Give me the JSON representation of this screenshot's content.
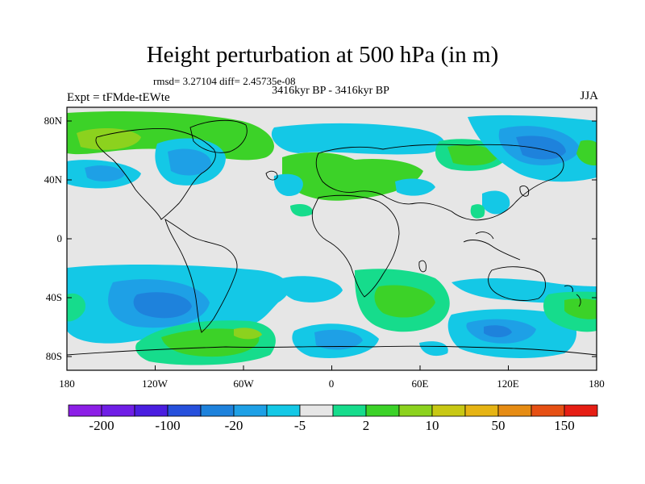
{
  "title": "Height perturbation at 500 hPa (in m)",
  "stats": "rmsd= 3.27104  diff= 2.45735e-08",
  "period": "3416kyr BP - 3416kyr BP",
  "experiment": "Expt = tFMde-tEWte",
  "season": "JJA",
  "lat_ticks": [
    "80N",
    "40N",
    "0",
    "40S",
    "80S"
  ],
  "lon_ticks": [
    "180",
    "120W",
    "60W",
    "0",
    "60E",
    "120E",
    "180"
  ],
  "colorbar": {
    "labels": [
      "-200",
      "-100",
      "-20",
      "-5",
      "2",
      "10",
      "50",
      "150"
    ],
    "colors": [
      "#8c1fe6",
      "#6f1ee6",
      "#4a1ee0",
      "#2650dc",
      "#1e82dc",
      "#1ea0e6",
      "#14c8e6",
      "#e6e6e6",
      "#16dc8c",
      "#3cd228",
      "#8cd21e",
      "#c8c814",
      "#e6b414",
      "#e68c14",
      "#e65014",
      "#e61e14"
    ]
  },
  "palette": {
    "neutral": "#e6e6e6",
    "light_blue": "#14c8e6",
    "mid_blue": "#1ea0e6",
    "blue": "#1e82dc",
    "teal_green": "#16dc8c",
    "green": "#3cd228",
    "yellow_green": "#8cd21e"
  }
}
